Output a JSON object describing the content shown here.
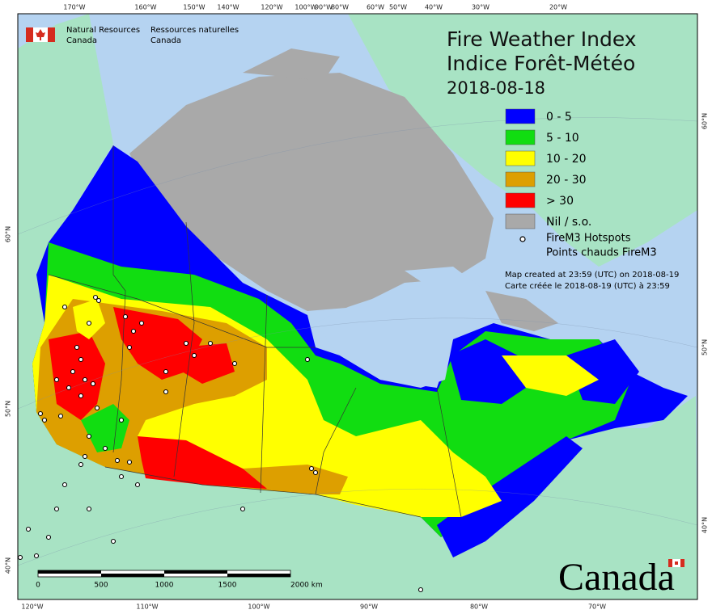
{
  "header": {
    "en_line1": "Natural Resources",
    "en_line2": "Canada",
    "fr_line1": "Ressources naturelles",
    "fr_line2": "Canada"
  },
  "title": {
    "en": "Fire Weather Index",
    "fr": "Indice Forêt-Météo",
    "date": "2018-08-18"
  },
  "legend": {
    "classes": [
      {
        "label": "0 - 5",
        "color": "#0000ff"
      },
      {
        "label": "5 - 10",
        "color": "#11dd11"
      },
      {
        "label": "10 - 20",
        "color": "#ffff00"
      },
      {
        "label": "20 - 30",
        "color": "#dd9f00"
      },
      {
        "label": "> 30",
        "color": "#ff0000"
      },
      {
        "label": "Nil / s.o.",
        "color": "#a9a9a9"
      }
    ],
    "hotspots_en": "FireM3 Hotspots",
    "hotspots_fr": "Points chauds FireM3"
  },
  "notes": [
    "Map created at 23:59 (UTC) on 2018-08-19",
    "Carte créée le 2018-08-19 (UTC) à 23:59"
  ],
  "graticule": {
    "top": [
      "170°W",
      "160°W",
      "150°W",
      "140°W",
      "120°W",
      "100°W",
      "90°W",
      "80°W",
      "60°W",
      "50°W",
      "40°W",
      "30°W",
      "20°W"
    ],
    "bottom": [
      "120°W",
      "110°W",
      "100°W",
      "90°W",
      "80°W",
      "70°W"
    ],
    "left": [
      "60°N",
      "50°N",
      "40°N"
    ],
    "right": [
      "60°N",
      "50°N",
      "40°N"
    ]
  },
  "scale_bar": [
    "0",
    "500",
    "1000",
    "1500",
    "2000 km"
  ],
  "wordmark": "Canada"
}
